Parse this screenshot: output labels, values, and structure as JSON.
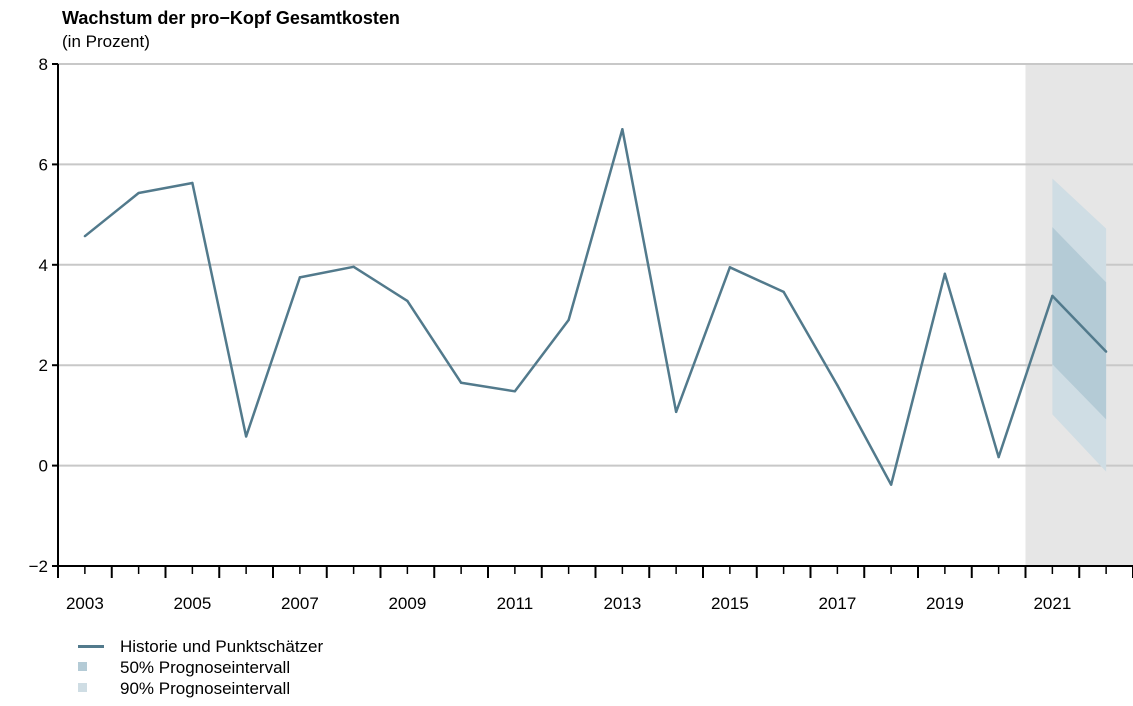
{
  "chart_data": {
    "type": "line",
    "title": "Wachstum der pro−Kopf Gesamtkosten",
    "subtitle": "(in Prozent)",
    "xlabel": "",
    "ylabel": "",
    "xlim": [
      2002.5,
      2022.5
    ],
    "ylim": [
      -2,
      8
    ],
    "yticks": [
      -2,
      0,
      2,
      4,
      6,
      8
    ],
    "ytick_labels": [
      "−2",
      "0",
      "2",
      "4",
      "6",
      "8"
    ],
    "xtick_labels": [
      "2003",
      "2005",
      "2007",
      "2009",
      "2011",
      "2013",
      "2015",
      "2017",
      "2019",
      "2021"
    ],
    "forecast_start": 2020.5,
    "grid": true,
    "series": [
      {
        "name": "Historie und Punktschätzer",
        "color": "#527a8c",
        "x": [
          2003,
          2004,
          2005,
          2006,
          2007,
          2008,
          2009,
          2010,
          2011,
          2012,
          2013,
          2014,
          2015,
          2016,
          2017,
          2018,
          2019,
          2020,
          2021,
          2022
        ],
        "values": [
          4.57,
          5.43,
          5.63,
          0.58,
          3.75,
          3.96,
          3.28,
          1.65,
          1.48,
          2.9,
          6.7,
          1.07,
          3.95,
          3.46,
          1.6,
          -0.38,
          3.82,
          0.17,
          3.38,
          2.27
        ]
      }
    ],
    "intervals": [
      {
        "name": "90% Prognoseintervall",
        "color": "#cfdde4",
        "x": [
          2021,
          2022
        ],
        "lower": [
          1.02,
          -0.12
        ],
        "upper": [
          5.72,
          4.72
        ]
      },
      {
        "name": "50% Prognoseintervall",
        "color": "#b4cbd6",
        "x": [
          2021,
          2022
        ],
        "lower": [
          2.02,
          0.92
        ],
        "upper": [
          4.75,
          3.65
        ]
      }
    ],
    "legend_position": "bottom-left"
  },
  "legend": [
    {
      "label": "Historie und Punktschätzer",
      "kind": "line",
      "color": "#527a8c"
    },
    {
      "label": "50% Prognoseintervall",
      "kind": "square",
      "color": "#b4cbd6"
    },
    {
      "label": "90% Prognoseintervall",
      "kind": "square",
      "color": "#cfdde4"
    }
  ]
}
